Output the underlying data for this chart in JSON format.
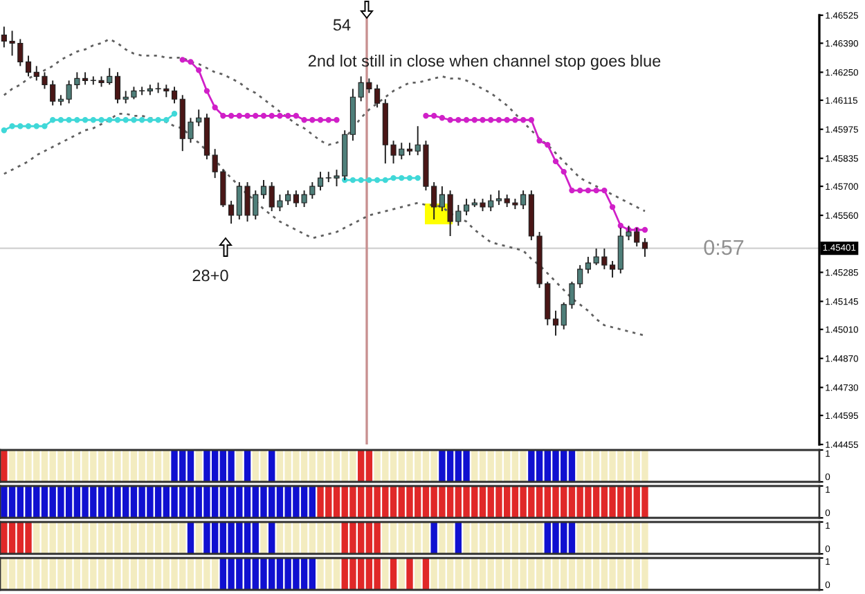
{
  "chart_data": [
    {
      "type": "candlestick",
      "categories": [
        null,
        null,
        null,
        null,
        null,
        null,
        null,
        null,
        null,
        null,
        null,
        null,
        null,
        null,
        null,
        null,
        null,
        null,
        null,
        null,
        null,
        null,
        null,
        null,
        null,
        null,
        null,
        null,
        null,
        null,
        null,
        null,
        null,
        null,
        null,
        null,
        null,
        null,
        null,
        null,
        null,
        null,
        null,
        null,
        null,
        null,
        null,
        null,
        null,
        null,
        null,
        null,
        null,
        null,
        null,
        null,
        null,
        null,
        null,
        null,
        null,
        null,
        null,
        null,
        null,
        null,
        null,
        null,
        null,
        null,
        null,
        null,
        null,
        null,
        null,
        null,
        null,
        null,
        null,
        null,
        null,
        null,
        null,
        null,
        null,
        null,
        null,
        null,
        null,
        null,
        null,
        null,
        null,
        null,
        null,
        null,
        null,
        null,
        null,
        null,
        null
      ],
      "ohlc": [
        [
          1.4643,
          1.4647,
          1.4637,
          1.464
        ],
        [
          1.464,
          1.4645,
          1.4633,
          1.4639
        ],
        [
          1.4639,
          1.4641,
          1.4628,
          1.463
        ],
        [
          1.463,
          1.4633,
          1.4623,
          1.4625
        ],
        [
          1.4625,
          1.4628,
          1.4621,
          1.4623
        ],
        [
          1.4623,
          1.4625,
          1.4617,
          1.4619
        ],
        [
          1.4619,
          1.4621,
          1.4609,
          1.4611
        ],
        [
          1.4611,
          1.4614,
          1.4609,
          1.4612
        ],
        [
          1.4612,
          1.4621,
          1.461,
          1.4619
        ],
        [
          1.4619,
          1.4625,
          1.4617,
          1.4622
        ],
        [
          1.4622,
          1.4625,
          1.4619,
          1.4621
        ],
        [
          1.4621,
          1.4623,
          1.4619,
          1.4621
        ],
        [
          1.4621,
          1.4623,
          1.4618,
          1.462
        ],
        [
          1.462,
          1.4627,
          1.4619,
          1.4623
        ],
        [
          1.4623,
          1.4625,
          1.461,
          1.4612
        ],
        [
          1.4612,
          1.4616,
          1.461,
          1.4613
        ],
        [
          1.4613,
          1.4618,
          1.4612,
          1.4616
        ],
        [
          1.4616,
          1.4618,
          1.4614,
          1.4616
        ],
        [
          1.4616,
          1.4619,
          1.4614,
          1.4617
        ],
        [
          1.4617,
          1.462,
          1.4615,
          1.4617
        ],
        [
          1.4617,
          1.4619,
          1.4613,
          1.4616
        ],
        [
          1.4616,
          1.4618,
          1.461,
          1.4612
        ],
        [
          1.4612,
          1.4614,
          1.4587,
          1.4593
        ],
        [
          1.4593,
          1.4603,
          1.4591,
          1.4601
        ],
        [
          1.4601,
          1.4607,
          1.4599,
          1.4603
        ],
        [
          1.4603,
          1.4605,
          1.4583,
          1.4585
        ],
        [
          1.4585,
          1.4588,
          1.4574,
          1.4577
        ],
        [
          1.4577,
          1.4578,
          1.456,
          1.4561
        ],
        [
          1.4561,
          1.4563,
          1.4552,
          1.4556
        ],
        [
          1.4556,
          1.4572,
          1.4554,
          1.457
        ],
        [
          1.457,
          1.4572,
          1.4553,
          1.4556
        ],
        [
          1.4556,
          1.4568,
          1.4554,
          1.4566
        ],
        [
          1.4566,
          1.4573,
          1.4564,
          1.457
        ],
        [
          1.457,
          1.4572,
          1.4558,
          1.456
        ],
        [
          1.456,
          1.4566,
          1.4558,
          1.4563
        ],
        [
          1.4563,
          1.4568,
          1.4561,
          1.4566
        ],
        [
          1.4566,
          1.4568,
          1.456,
          1.4562
        ],
        [
          1.4562,
          1.4568,
          1.456,
          1.4566
        ],
        [
          1.4566,
          1.4572,
          1.4564,
          1.457
        ],
        [
          1.457,
          1.4577,
          1.4568,
          1.4574
        ],
        [
          1.4574,
          1.4577,
          1.4572,
          1.4574
        ],
        [
          1.4574,
          1.4578,
          1.457,
          1.4575
        ],
        [
          1.4575,
          1.4597,
          1.4573,
          1.4595
        ],
        [
          1.4595,
          1.4617,
          1.4592,
          1.4613
        ],
        [
          1.4613,
          1.4623,
          1.4611,
          1.462
        ],
        [
          1.462,
          1.4622,
          1.4615,
          1.4617
        ],
        [
          1.4617,
          1.4619,
          1.4608,
          1.461
        ],
        [
          1.461,
          1.4612,
          1.4581,
          1.459
        ],
        [
          1.459,
          1.4592,
          1.4581,
          1.4585
        ],
        [
          1.4585,
          1.4591,
          1.4583,
          1.4588
        ],
        [
          1.4588,
          1.4591,
          1.4585,
          1.4587
        ],
        [
          1.4587,
          1.4599,
          1.4585,
          1.459
        ],
        [
          1.459,
          1.4592,
          1.4568,
          1.457
        ],
        [
          1.457,
          1.4572,
          1.4554,
          1.456
        ],
        [
          1.456,
          1.457,
          1.4558,
          1.4566
        ],
        [
          1.4566,
          1.4568,
          1.4546,
          1.4553
        ],
        [
          1.4553,
          1.4561,
          1.4551,
          1.4558
        ],
        [
          1.4558,
          1.4564,
          1.4556,
          1.4561
        ],
        [
          1.4561,
          1.4564,
          1.456,
          1.4562
        ],
        [
          1.4562,
          1.4564,
          1.4558,
          1.456
        ],
        [
          1.456,
          1.4566,
          1.4558,
          1.4563
        ],
        [
          1.4563,
          1.4568,
          1.4561,
          1.4564
        ],
        [
          1.4564,
          1.4566,
          1.456,
          1.4562
        ],
        [
          1.4562,
          1.4564,
          1.4559,
          1.4561
        ],
        [
          1.4561,
          1.4568,
          1.4559,
          1.4566
        ],
        [
          1.4566,
          1.4568,
          1.4544,
          1.4546
        ],
        [
          1.4546,
          1.4548,
          1.4521,
          1.4523
        ],
        [
          1.4523,
          1.4524,
          1.4503,
          1.4506
        ],
        [
          1.4506,
          1.451,
          1.4498,
          1.4503
        ],
        [
          1.4503,
          1.4514,
          1.4501,
          1.4513
        ],
        [
          1.4513,
          1.4524,
          1.4511,
          1.4523
        ],
        [
          1.4523,
          1.4532,
          1.4521,
          1.453
        ],
        [
          1.453,
          1.4536,
          1.4528,
          1.4533
        ],
        [
          1.4533,
          1.454,
          1.4532,
          1.4536
        ],
        [
          1.4536,
          1.454,
          1.453,
          1.4532
        ],
        [
          1.4532,
          1.4534,
          1.4526,
          1.453
        ],
        [
          1.453,
          1.455,
          1.4528,
          1.4546
        ],
        [
          1.4546,
          1.4551,
          1.4544,
          1.4548
        ],
        [
          1.4548,
          1.455,
          1.4541,
          1.4543
        ],
        [
          1.4543,
          1.4545,
          1.4536,
          1.454
        ],
        null,
        null,
        null,
        null,
        null,
        null,
        null,
        null,
        null,
        null,
        null,
        null,
        null,
        null,
        null,
        null,
        null,
        null,
        null,
        null,
        null
      ],
      "series": [
        {
          "type": "line",
          "color": "#606060",
          "line_style": "dotted",
          "marker": "none",
          "values": [
            1.4614,
            1.4617,
            1.4619,
            1.4622,
            1.4624,
            1.4626,
            1.4628,
            1.4631,
            1.4633,
            1.4635,
            1.4636,
            1.4638,
            1.4639,
            1.4641,
            1.4639,
            1.4636,
            1.4634,
            1.4633,
            1.4633,
            1.4633,
            1.4632,
            1.4632,
            1.4632,
            1.463,
            1.4629,
            1.4627,
            1.4625,
            1.4624,
            1.4622,
            1.462,
            1.4617,
            1.4615,
            1.4612,
            1.4609,
            1.4606,
            1.4603,
            1.46,
            1.4598,
            1.4595,
            1.4592,
            1.459,
            1.4591,
            1.4593,
            1.4598,
            1.4603,
            1.4607,
            1.461,
            1.4613,
            1.4616,
            1.4618,
            1.462,
            1.462,
            1.4621,
            1.4622,
            1.4623,
            1.4622,
            1.4622,
            1.4621,
            1.4619,
            1.4617,
            1.4615,
            1.4612,
            1.4609,
            1.4605,
            1.4601,
            1.4597,
            1.4593,
            1.459,
            1.4586,
            1.4582,
            1.4578,
            1.4574,
            1.4572,
            1.457,
            1.4568,
            1.4566,
            1.4564,
            1.4562,
            1.456,
            1.4558,
            null,
            null,
            null,
            null,
            null,
            null,
            null,
            null,
            null,
            null,
            null,
            null,
            null,
            null,
            null,
            null,
            null,
            null,
            null,
            null,
            null
          ]
        },
        {
          "type": "line",
          "color": "#606060",
          "line_style": "dotted",
          "marker": "none",
          "values": [
            1.4576,
            1.4578,
            1.458,
            1.4582,
            1.4585,
            1.4587,
            1.4589,
            1.4591,
            1.4593,
            1.4595,
            1.4597,
            1.4598,
            1.46,
            1.4602,
            1.4605,
            1.4605,
            1.4604,
            1.4604,
            1.4603,
            1.4602,
            1.4601,
            1.4599,
            1.4598,
            1.4594,
            1.4591,
            1.4587,
            1.4583,
            1.4578,
            1.4574,
            1.457,
            1.4566,
            1.4563,
            1.4559,
            1.4556,
            1.4553,
            1.4551,
            1.4549,
            1.4547,
            1.4545,
            1.4546,
            1.4547,
            1.4548,
            1.455,
            1.4552,
            1.4554,
            1.4556,
            1.4557,
            1.4558,
            1.4559,
            1.456,
            1.4561,
            1.4562,
            1.4561,
            1.4561,
            1.456,
            1.4557,
            1.4555,
            1.4553,
            1.4549,
            1.4546,
            1.4543,
            1.4542,
            1.4541,
            1.454,
            1.4539,
            1.4535,
            1.4532,
            1.4528,
            1.4524,
            1.452,
            1.4516,
            1.4513,
            1.451,
            1.4506,
            1.4503,
            1.4502,
            1.4501,
            1.45,
            1.4499,
            1.4498,
            null,
            null,
            null,
            null,
            null,
            null,
            null,
            null,
            null,
            null,
            null,
            null,
            null,
            null,
            null,
            null,
            null,
            null,
            null,
            null,
            null
          ]
        },
        {
          "type": "line",
          "color": "#d020c8",
          "line_style": "solid",
          "marker": "circle",
          "values": [
            null,
            null,
            null,
            null,
            null,
            null,
            null,
            null,
            null,
            null,
            null,
            null,
            null,
            null,
            null,
            null,
            null,
            null,
            null,
            null,
            null,
            null,
            1.4631,
            1.463,
            1.4626,
            1.4616,
            1.4608,
            1.4604,
            1.4604,
            1.4604,
            1.4604,
            1.4604,
            1.4604,
            1.4604,
            1.4604,
            1.4604,
            1.4604,
            1.4602,
            1.4602,
            1.4602,
            1.4602,
            1.4602,
            null,
            null,
            null,
            null,
            null,
            null,
            null,
            null,
            null,
            null,
            1.4604,
            1.4604,
            1.4603,
            1.4602,
            1.4602,
            1.4602,
            1.4602,
            1.4602,
            1.4602,
            1.4602,
            1.4602,
            1.4602,
            1.4602,
            1.4602,
            1.4592,
            1.459,
            1.4582,
            1.4577,
            1.4568,
            1.4568,
            1.4568,
            1.4568,
            1.4568,
            1.456,
            1.4551,
            1.4549,
            1.4549,
            1.4549,
            null,
            null,
            null,
            null,
            null,
            null,
            null,
            null,
            null,
            null,
            null,
            null,
            null,
            null,
            null,
            null,
            null,
            null,
            null,
            null,
            null
          ]
        },
        {
          "type": "line",
          "color": "#40d8d8",
          "line_style": "solid",
          "marker": "circle",
          "values": [
            1.4597,
            1.4599,
            1.4599,
            1.4599,
            1.4599,
            1.4599,
            1.4602,
            1.4602,
            1.4602,
            1.4602,
            1.4602,
            1.4602,
            1.4602,
            1.4602,
            1.4602,
            1.4602,
            1.4602,
            1.4602,
            1.4602,
            1.4602,
            1.4602,
            1.4605,
            null,
            null,
            null,
            null,
            null,
            null,
            null,
            null,
            null,
            null,
            null,
            null,
            null,
            null,
            null,
            null,
            null,
            null,
            null,
            null,
            1.4573,
            1.4573,
            1.4573,
            1.4573,
            1.4573,
            1.4573,
            1.4574,
            1.4574,
            1.4574,
            1.4574,
            null,
            null,
            null,
            null,
            null,
            null,
            null,
            null,
            null,
            null,
            null,
            null,
            null,
            null,
            null,
            null,
            null,
            null,
            null,
            null,
            null,
            null,
            null,
            null,
            null,
            null,
            null,
            null,
            null,
            null,
            null,
            null,
            null,
            null,
            null,
            null,
            null,
            null,
            null,
            null,
            null,
            null,
            null,
            null,
            null,
            null,
            null,
            null,
            null
          ]
        }
      ],
      "ylim": [
        1.44455,
        1.46525
      ],
      "yticks": [
        1.46525,
        {
          "value": 1.4639,
          "label": "1.46390"
        },
        {
          "value": 1.4625,
          "label": "1.46250"
        },
        1.46115,
        1.45975,
        1.45835,
        {
          "value": 1.457,
          "label": "1.45700"
        },
        {
          "value": 1.4556,
          "label": "1.45560"
        },
        1.45285,
        1.45145,
        {
          "value": 1.4501,
          "label": "1.45010"
        },
        {
          "value": 1.4487,
          "label": "1.44870"
        },
        {
          "value": 1.4473,
          "label": "1.44730"
        },
        1.44595,
        1.44455
      ],
      "tick_labels": "y",
      "grid": false,
      "legend": false,
      "ref_lines": [
        {
          "axis": "y",
          "value": 1.45401,
          "label": "1.45401",
          "color": "#d0d0d0"
        }
      ],
      "annotations": [
        "54",
        "2nd lot still in close when channel stop goes blue",
        "28+0",
        "0:57"
      ]
    },
    {
      "type": "bar",
      "categories": [
        null,
        null,
        null,
        null,
        null,
        null,
        null,
        null,
        null,
        null,
        null,
        null,
        null,
        null,
        null,
        null,
        null,
        null,
        null,
        null,
        null,
        null,
        null,
        null,
        null,
        null,
        null,
        null,
        null,
        null,
        null,
        null,
        null,
        null,
        null,
        null,
        null,
        null,
        null,
        null,
        null,
        null,
        null,
        null,
        null,
        null,
        null,
        null,
        null,
        null,
        null,
        null,
        null,
        null,
        null,
        null,
        null,
        null,
        null,
        null,
        null,
        null,
        null,
        null,
        null,
        null,
        null,
        null,
        null,
        null,
        null,
        null,
        null,
        null,
        null,
        null,
        null,
        null,
        null,
        null,
        null,
        null,
        null,
        null,
        null,
        null,
        null,
        null,
        null,
        null,
        null,
        null,
        null,
        null,
        null,
        null,
        null,
        null,
        null,
        null,
        null
      ],
      "values": [
        1,
        1,
        1,
        1,
        1,
        1,
        1,
        1,
        1,
        1,
        1,
        1,
        1,
        1,
        1,
        1,
        1,
        1,
        1,
        1,
        1,
        1,
        1,
        1,
        1,
        1,
        1,
        1,
        1,
        1,
        1,
        1,
        1,
        1,
        1,
        1,
        1,
        1,
        1,
        1,
        1,
        1,
        1,
        1,
        1,
        1,
        1,
        1,
        1,
        1,
        1,
        1,
        1,
        1,
        1,
        1,
        1,
        1,
        1,
        1,
        1,
        1,
        1,
        1,
        1,
        1,
        1,
        1,
        1,
        1,
        1,
        1,
        1,
        1,
        1,
        1,
        1,
        1,
        1,
        1,
        null,
        null,
        null,
        null,
        null,
        null,
        null,
        null,
        null,
        null,
        null,
        null,
        null,
        null,
        null,
        null,
        null,
        null,
        null,
        null,
        null
      ],
      "colors": [
        "#e02828",
        "#f3ecc0",
        "#f3ecc0",
        "#f3ecc0",
        "#f3ecc0",
        "#f3ecc0",
        "#f3ecc0",
        "#f3ecc0",
        "#f3ecc0",
        "#f3ecc0",
        "#f3ecc0",
        "#f3ecc0",
        "#f3ecc0",
        "#f3ecc0",
        "#f3ecc0",
        "#f3ecc0",
        "#f3ecc0",
        "#f3ecc0",
        "#f3ecc0",
        "#f3ecc0",
        "#f3ecc0",
        "#1010d0",
        "#1010d0",
        "#1010d0",
        "#f3ecc0",
        "#1010d0",
        "#1010d0",
        "#1010d0",
        "#1010d0",
        "#f3ecc0",
        "#1010d0",
        "#f3ecc0",
        "#f3ecc0",
        "#1010d0",
        "#f3ecc0",
        "#f3ecc0",
        "#f3ecc0",
        "#f3ecc0",
        "#f3ecc0",
        "#f3ecc0",
        "#f3ecc0",
        "#f3ecc0",
        "#f3ecc0",
        "#f3ecc0",
        "#e02828",
        "#e02828",
        "#f3ecc0",
        "#f3ecc0",
        "#f3ecc0",
        "#f3ecc0",
        "#f3ecc0",
        "#f3ecc0",
        "#f3ecc0",
        "#f3ecc0",
        "#1010d0",
        "#1010d0",
        "#1010d0",
        "#1010d0",
        "#f3ecc0",
        "#f3ecc0",
        "#f3ecc0",
        "#f3ecc0",
        "#f3ecc0",
        "#f3ecc0",
        "#f3ecc0",
        "#1010d0",
        "#1010d0",
        "#1010d0",
        "#1010d0",
        "#1010d0",
        "#1010d0",
        "#f3ecc0",
        "#f3ecc0",
        "#f3ecc0",
        "#f3ecc0",
        "#f3ecc0",
        "#f3ecc0",
        "#f3ecc0",
        "#f3ecc0",
        "#f3ecc0",
        null,
        null,
        null,
        null,
        null,
        null,
        null,
        null,
        null,
        null,
        null,
        null,
        null,
        null,
        null,
        null,
        null,
        null,
        null,
        null,
        null
      ],
      "ylim": [
        0,
        1
      ],
      "yticks": [
        0,
        1
      ],
      "tick_labels": "y",
      "grid": false
    },
    {
      "type": "bar",
      "categories": [
        null,
        null,
        null,
        null,
        null,
        null,
        null,
        null,
        null,
        null,
        null,
        null,
        null,
        null,
        null,
        null,
        null,
        null,
        null,
        null,
        null,
        null,
        null,
        null,
        null,
        null,
        null,
        null,
        null,
        null,
        null,
        null,
        null,
        null,
        null,
        null,
        null,
        null,
        null,
        null,
        null,
        null,
        null,
        null,
        null,
        null,
        null,
        null,
        null,
        null,
        null,
        null,
        null,
        null,
        null,
        null,
        null,
        null,
        null,
        null,
        null,
        null,
        null,
        null,
        null,
        null,
        null,
        null,
        null,
        null,
        null,
        null,
        null,
        null,
        null,
        null,
        null,
        null,
        null,
        null,
        null,
        null,
        null,
        null,
        null,
        null,
        null,
        null,
        null,
        null,
        null,
        null,
        null,
        null,
        null,
        null,
        null,
        null,
        null,
        null,
        null
      ],
      "values": [
        1,
        1,
        1,
        1,
        1,
        1,
        1,
        1,
        1,
        1,
        1,
        1,
        1,
        1,
        1,
        1,
        1,
        1,
        1,
        1,
        1,
        1,
        1,
        1,
        1,
        1,
        1,
        1,
        1,
        1,
        1,
        1,
        1,
        1,
        1,
        1,
        1,
        1,
        1,
        1,
        1,
        1,
        1,
        1,
        1,
        1,
        1,
        1,
        1,
        1,
        1,
        1,
        1,
        1,
        1,
        1,
        1,
        1,
        1,
        1,
        1,
        1,
        1,
        1,
        1,
        1,
        1,
        1,
        1,
        1,
        1,
        1,
        1,
        1,
        1,
        1,
        1,
        1,
        1,
        1,
        null,
        null,
        null,
        null,
        null,
        null,
        null,
        null,
        null,
        null,
        null,
        null,
        null,
        null,
        null,
        null,
        null,
        null,
        null,
        null,
        null
      ],
      "colors": [
        "#1010d0",
        "#1010d0",
        "#1010d0",
        "#1010d0",
        "#1010d0",
        "#1010d0",
        "#1010d0",
        "#1010d0",
        "#1010d0",
        "#1010d0",
        "#1010d0",
        "#1010d0",
        "#1010d0",
        "#1010d0",
        "#1010d0",
        "#1010d0",
        "#1010d0",
        "#1010d0",
        "#1010d0",
        "#1010d0",
        "#1010d0",
        "#1010d0",
        "#1010d0",
        "#1010d0",
        "#1010d0",
        "#1010d0",
        "#1010d0",
        "#1010d0",
        "#1010d0",
        "#1010d0",
        "#1010d0",
        "#1010d0",
        "#1010d0",
        "#1010d0",
        "#1010d0",
        "#1010d0",
        "#1010d0",
        "#1010d0",
        "#1010d0",
        "#e02828",
        "#e02828",
        "#e02828",
        "#e02828",
        "#e02828",
        "#e02828",
        "#e02828",
        "#e02828",
        "#e02828",
        "#e02828",
        "#e02828",
        "#e02828",
        "#e02828",
        "#e02828",
        "#e02828",
        "#e02828",
        "#e02828",
        "#e02828",
        "#e02828",
        "#e02828",
        "#e02828",
        "#e02828",
        "#e02828",
        "#e02828",
        "#e02828",
        "#e02828",
        "#e02828",
        "#e02828",
        "#e02828",
        "#e02828",
        "#e02828",
        "#e02828",
        "#e02828",
        "#e02828",
        "#e02828",
        "#e02828",
        "#e02828",
        "#e02828",
        "#e02828",
        "#e02828",
        "#e02828",
        null,
        null,
        null,
        null,
        null,
        null,
        null,
        null,
        null,
        null,
        null,
        null,
        null,
        null,
        null,
        null,
        null,
        null,
        null,
        null,
        null
      ],
      "ylim": [
        0,
        1
      ],
      "yticks": [
        0,
        1
      ],
      "tick_labels": "y",
      "grid": false
    },
    {
      "type": "bar",
      "categories": [
        null,
        null,
        null,
        null,
        null,
        null,
        null,
        null,
        null,
        null,
        null,
        null,
        null,
        null,
        null,
        null,
        null,
        null,
        null,
        null,
        null,
        null,
        null,
        null,
        null,
        null,
        null,
        null,
        null,
        null,
        null,
        null,
        null,
        null,
        null,
        null,
        null,
        null,
        null,
        null,
        null,
        null,
        null,
        null,
        null,
        null,
        null,
        null,
        null,
        null,
        null,
        null,
        null,
        null,
        null,
        null,
        null,
        null,
        null,
        null,
        null,
        null,
        null,
        null,
        null,
        null,
        null,
        null,
        null,
        null,
        null,
        null,
        null,
        null,
        null,
        null,
        null,
        null,
        null,
        null,
        null,
        null,
        null,
        null,
        null,
        null,
        null,
        null,
        null,
        null,
        null,
        null,
        null,
        null,
        null,
        null,
        null,
        null,
        null,
        null,
        null
      ],
      "values": [
        1,
        1,
        1,
        1,
        1,
        1,
        1,
        1,
        1,
        1,
        1,
        1,
        1,
        1,
        1,
        1,
        1,
        1,
        1,
        1,
        1,
        1,
        1,
        1,
        1,
        1,
        1,
        1,
        1,
        1,
        1,
        1,
        1,
        1,
        1,
        1,
        1,
        1,
        1,
        1,
        1,
        1,
        1,
        1,
        1,
        1,
        1,
        1,
        1,
        1,
        1,
        1,
        1,
        1,
        1,
        1,
        1,
        1,
        1,
        1,
        1,
        1,
        1,
        1,
        1,
        1,
        1,
        1,
        1,
        1,
        1,
        1,
        1,
        1,
        1,
        1,
        1,
        1,
        1,
        1,
        null,
        null,
        null,
        null,
        null,
        null,
        null,
        null,
        null,
        null,
        null,
        null,
        null,
        null,
        null,
        null,
        null,
        null,
        null,
        null,
        null
      ],
      "colors": [
        "#e02828",
        "#e02828",
        "#e02828",
        "#e02828",
        "#f3ecc0",
        "#f3ecc0",
        "#f3ecc0",
        "#f3ecc0",
        "#f3ecc0",
        "#f3ecc0",
        "#f3ecc0",
        "#f3ecc0",
        "#f3ecc0",
        "#f3ecc0",
        "#f3ecc0",
        "#f3ecc0",
        "#f3ecc0",
        "#f3ecc0",
        "#f3ecc0",
        "#f3ecc0",
        "#f3ecc0",
        "#f3ecc0",
        "#f3ecc0",
        "#1010d0",
        "#f3ecc0",
        "#1010d0",
        "#1010d0",
        "#1010d0",
        "#1010d0",
        "#1010d0",
        "#1010d0",
        "#1010d0",
        "#f3ecc0",
        "#1010d0",
        "#f3ecc0",
        "#f3ecc0",
        "#f3ecc0",
        "#f3ecc0",
        "#f3ecc0",
        "#f3ecc0",
        "#f3ecc0",
        "#f3ecc0",
        "#e02828",
        "#e02828",
        "#e02828",
        "#e02828",
        "#e02828",
        "#f3ecc0",
        "#f3ecc0",
        "#f3ecc0",
        "#f3ecc0",
        "#f3ecc0",
        "#f3ecc0",
        "#1010d0",
        "#f3ecc0",
        "#f3ecc0",
        "#1010d0",
        "#f3ecc0",
        "#f3ecc0",
        "#f3ecc0",
        "#f3ecc0",
        "#f3ecc0",
        "#f3ecc0",
        "#f3ecc0",
        "#f3ecc0",
        "#f3ecc0",
        "#f3ecc0",
        "#1010d0",
        "#1010d0",
        "#1010d0",
        "#1010d0",
        "#f3ecc0",
        "#f3ecc0",
        "#f3ecc0",
        "#f3ecc0",
        "#f3ecc0",
        "#f3ecc0",
        "#f3ecc0",
        "#f3ecc0",
        "#f3ecc0",
        null,
        null,
        null,
        null,
        null,
        null,
        null,
        null,
        null,
        null,
        null,
        null,
        null,
        null,
        null,
        null,
        null,
        null,
        null,
        null,
        null
      ],
      "ylim": [
        0,
        1
      ],
      "yticks": [
        0,
        1
      ],
      "tick_labels": "y",
      "grid": false
    },
    {
      "type": "bar",
      "categories": [
        null,
        null,
        null,
        null,
        null,
        null,
        null,
        null,
        null,
        null,
        null,
        null,
        null,
        null,
        null,
        null,
        null,
        null,
        null,
        null,
        null,
        null,
        null,
        null,
        null,
        null,
        null,
        null,
        null,
        null,
        null,
        null,
        null,
        null,
        null,
        null,
        null,
        null,
        null,
        null,
        null,
        null,
        null,
        null,
        null,
        null,
        null,
        null,
        null,
        null,
        null,
        null,
        null,
        null,
        null,
        null,
        null,
        null,
        null,
        null,
        null,
        null,
        null,
        null,
        null,
        null,
        null,
        null,
        null,
        null,
        null,
        null,
        null,
        null,
        null,
        null,
        null,
        null,
        null,
        null,
        null,
        null,
        null,
        null,
        null,
        null,
        null,
        null,
        null,
        null,
        null,
        null,
        null,
        null,
        null,
        null,
        null,
        null,
        null,
        null,
        null
      ],
      "values": [
        1,
        1,
        1,
        1,
        1,
        1,
        1,
        1,
        1,
        1,
        1,
        1,
        1,
        1,
        1,
        1,
        1,
        1,
        1,
        1,
        1,
        1,
        1,
        1,
        1,
        1,
        1,
        1,
        1,
        1,
        1,
        1,
        1,
        1,
        1,
        1,
        1,
        1,
        1,
        1,
        1,
        1,
        1,
        1,
        1,
        1,
        1,
        1,
        1,
        1,
        1,
        1,
        1,
        1,
        1,
        1,
        1,
        1,
        1,
        1,
        1,
        1,
        1,
        1,
        1,
        1,
        1,
        1,
        1,
        1,
        1,
        1,
        1,
        1,
        1,
        1,
        1,
        1,
        1,
        1,
        null,
        null,
        null,
        null,
        null,
        null,
        null,
        null,
        null,
        null,
        null,
        null,
        null,
        null,
        null,
        null,
        null,
        null,
        null,
        null,
        null
      ],
      "colors": [
        "#f3ecc0",
        "#f3ecc0",
        "#f3ecc0",
        "#f3ecc0",
        "#f3ecc0",
        "#f3ecc0",
        "#f3ecc0",
        "#f3ecc0",
        "#f3ecc0",
        "#f3ecc0",
        "#f3ecc0",
        "#f3ecc0",
        "#f3ecc0",
        "#f3ecc0",
        "#f3ecc0",
        "#f3ecc0",
        "#f3ecc0",
        "#f3ecc0",
        "#f3ecc0",
        "#f3ecc0",
        "#f3ecc0",
        "#f3ecc0",
        "#f3ecc0",
        "#f3ecc0",
        "#f3ecc0",
        "#f3ecc0",
        "#f3ecc0",
        "#1010d0",
        "#1010d0",
        "#1010d0",
        "#1010d0",
        "#1010d0",
        "#1010d0",
        "#1010d0",
        "#1010d0",
        "#1010d0",
        "#1010d0",
        "#1010d0",
        "#1010d0",
        "#f3ecc0",
        "#f3ecc0",
        "#f3ecc0",
        "#e02828",
        "#e02828",
        "#e02828",
        "#e02828",
        "#e02828",
        "#f3ecc0",
        "#e02828",
        "#f3ecc0",
        "#e02828",
        "#f3ecc0",
        "#e02828",
        "#f3ecc0",
        "#f3ecc0",
        "#f3ecc0",
        "#f3ecc0",
        "#f3ecc0",
        "#f3ecc0",
        "#f3ecc0",
        "#f3ecc0",
        "#f3ecc0",
        "#f3ecc0",
        "#f3ecc0",
        "#f3ecc0",
        "#f3ecc0",
        "#f3ecc0",
        "#f3ecc0",
        "#f3ecc0",
        "#f3ecc0",
        "#f3ecc0",
        "#f3ecc0",
        "#f3ecc0",
        "#f3ecc0",
        "#f3ecc0",
        "#f3ecc0",
        "#f3ecc0",
        "#f3ecc0",
        "#f3ecc0",
        "#f3ecc0",
        null,
        null,
        null,
        null,
        null,
        null,
        null,
        null,
        null,
        null,
        null,
        null,
        null,
        null,
        null,
        null,
        null,
        null,
        null,
        null,
        null
      ],
      "ylim": [
        0,
        1
      ],
      "yticks": [
        0,
        1
      ],
      "tick_labels": "y",
      "grid": false
    }
  ]
}
